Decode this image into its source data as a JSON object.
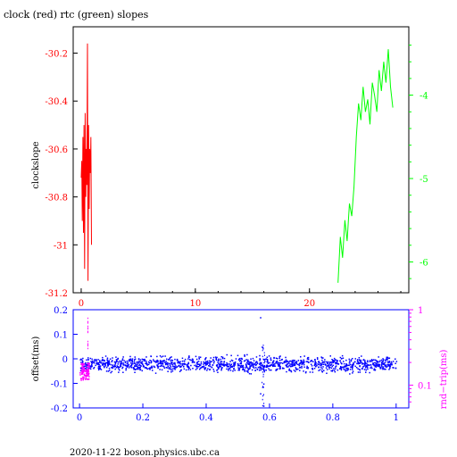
{
  "title": "clock (red) rtc (green) slopes",
  "footer": "2020-11-22  boson.physics.ubc.ca",
  "colors": {
    "red": "#ff0000",
    "green": "#00ff00",
    "blue": "#0000ff",
    "magenta": "#ff00ff",
    "black": "#000000"
  },
  "chart_data": [
    {
      "type": "line",
      "title": "clock (red) rtc (green) slopes",
      "ylabel": "clockslope",
      "xlim": [
        -0.7,
        28.7
      ],
      "ylim": [
        -31.2,
        -30.09
      ],
      "x_ticks": [
        "0",
        "10",
        "20"
      ],
      "x_tick_values": [
        0,
        10,
        20
      ],
      "y_ticks": [
        "-30.2",
        "-30.4",
        "-30.6",
        "-30.8",
        "-31",
        "-31.2"
      ],
      "y_tick_values": [
        -30.2,
        -30.4,
        -30.6,
        -30.8,
        -31,
        -31.2
      ],
      "y2lim": [
        -6.37,
        -3.18
      ],
      "y2_ticks": [
        "-4",
        "-5",
        "-6"
      ],
      "y2_tick_values": [
        -4,
        -5,
        -6
      ],
      "series": [
        {
          "name": "clock",
          "color": "#ff0000",
          "axis": "left",
          "x": [
            0.0,
            0.05,
            0.1,
            0.15,
            0.2,
            0.25,
            0.3,
            0.35,
            0.4,
            0.45,
            0.5,
            0.55,
            0.6,
            0.65,
            0.7,
            0.75,
            0.8,
            0.85,
            0.9
          ],
          "values": [
            -30.72,
            -30.65,
            -30.9,
            -30.55,
            -30.95,
            -30.5,
            -31.1,
            -30.45,
            -30.8,
            -30.6,
            -30.75,
            -30.16,
            -31.15,
            -30.5,
            -30.85,
            -30.6,
            -30.7,
            -30.55,
            -31.0
          ]
        },
        {
          "name": "rtc",
          "color": "#00ff00",
          "axis": "right",
          "x": [
            22.5,
            22.7,
            22.9,
            23.1,
            23.3,
            23.5,
            23.7,
            23.9,
            24.1,
            24.3,
            24.5,
            24.7,
            24.9,
            25.1,
            25.3,
            25.5,
            25.7,
            25.9,
            26.1,
            26.3,
            26.5,
            26.7,
            26.9,
            27.1,
            27.3
          ],
          "values": [
            -6.25,
            -5.7,
            -5.95,
            -5.5,
            -5.75,
            -5.3,
            -5.45,
            -5.1,
            -4.5,
            -4.1,
            -4.3,
            -3.9,
            -4.2,
            -4.05,
            -4.35,
            -3.85,
            -4.0,
            -4.2,
            -3.7,
            -3.95,
            -3.6,
            -3.85,
            -3.45,
            -3.9,
            -4.15
          ]
        }
      ]
    },
    {
      "type": "scatter",
      "ylabel": "offset(ms)",
      "y2label": "rnd−trip(ms)",
      "xlim": [
        -0.02,
        1.04
      ],
      "ylim": [
        -0.2,
        0.2
      ],
      "x_ticks": [
        "0",
        "0.2",
        "0.4",
        "0.6",
        "0.8",
        "1"
      ],
      "x_tick_values": [
        0,
        0.2,
        0.4,
        0.6,
        0.8,
        1
      ],
      "y_ticks": [
        "0.2",
        "0.1",
        "0",
        "-0.1",
        "-0.2"
      ],
      "y_tick_values": [
        0.2,
        0.1,
        0,
        -0.1,
        -0.2
      ],
      "y2_scale": "log",
      "y2_ticks": [
        "1",
        "0.1"
      ],
      "y2_tick_values": [
        1,
        0.1
      ],
      "series": [
        {
          "name": "offset",
          "color": "#0000ff",
          "x_range": [
            0,
            1
          ],
          "center": -0.02,
          "spread": 0.03,
          "outliers": [
            [
              0.57,
              0.17
            ],
            [
              0.57,
              -0.14
            ],
            [
              0.58,
              -0.19
            ],
            [
              0.575,
              0.05
            ],
            [
              0.58,
              -0.1
            ]
          ]
        },
        {
          "name": "rnd-trip",
          "color": "#ff00ff",
          "x_range": [
            0,
            0.03
          ],
          "center": -0.05,
          "spread": 0.07,
          "peak": [
            0.025,
            0.18
          ]
        }
      ]
    }
  ]
}
